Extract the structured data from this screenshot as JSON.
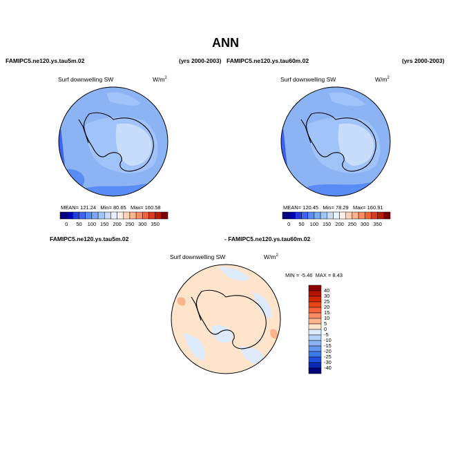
{
  "title": "ANN",
  "panels": [
    {
      "id": "left",
      "case": "FAMIPC5.ne120.ys.tau5m.02",
      "years": "(yrs 2000-2003)",
      "variable": "Surf downwelling SW",
      "units": "W/m",
      "units_exp": "2",
      "mean_label": "MEAN=",
      "mean": "121.24",
      "min_label": "Min=",
      "min": "80.65",
      "max_label": "Max=",
      "max": "160.58"
    },
    {
      "id": "right",
      "case": "FAMIPC5.ne120.ys.tau60m.02",
      "years": "(yrs 2000-2003)",
      "variable": "Surf downwelling SW",
      "units": "W/m",
      "units_exp": "2",
      "mean_label": "MEAN=",
      "mean": "120.45",
      "min_label": "Min=",
      "min": "78.29",
      "max_label": "Max=",
      "max": "160.91"
    }
  ],
  "diff": {
    "case_a": "FAMIPC5.ne120.ys.tau5m.02",
    "case_b": "- FAMIPC5.ne120.ys.tau60m.02",
    "variable": "Surf downwelling SW",
    "units": "W/m",
    "units_exp": "2",
    "min_label": "MIN =",
    "min": "-5.46",
    "max_label": "MAX =",
    "max": "8.43"
  },
  "colorbar_h": {
    "labels": [
      "0",
      "50",
      "100",
      "150",
      "200",
      "250",
      "300",
      "350"
    ],
    "colors": [
      "#00007a",
      "#0000b4",
      "#1e3cdc",
      "#3c64f0",
      "#5a8cf5",
      "#78aaf8",
      "#a0c4fa",
      "#c8dcfc",
      "#e6f0fe",
      "#fff0e6",
      "#ffd2b4",
      "#ffb48c",
      "#fa8c64",
      "#f0643c",
      "#dc3c1e",
      "#b41e0a",
      "#7a0000"
    ]
  },
  "colorbar_v": {
    "labels": [
      "40",
      "30",
      "25",
      "20",
      "15",
      "10",
      "5",
      "0",
      "-5",
      "-10",
      "-15",
      "-20",
      "-25",
      "-30",
      "-40"
    ],
    "colors": [
      "#8c0000",
      "#b41400",
      "#d22800",
      "#e64614",
      "#f5643c",
      "#fa8c64",
      "#fdb48c",
      "#ffe4cc",
      "#dceafc",
      "#b4d2fa",
      "#8cb4f5",
      "#6496f0",
      "#3c78e6",
      "#1e50dc",
      "#0a28b4",
      "#000078"
    ]
  },
  "colors": {
    "left_base": "#8cb4f5",
    "right_base": "#8cb4f5",
    "diff_base": "#ffe4cc"
  }
}
